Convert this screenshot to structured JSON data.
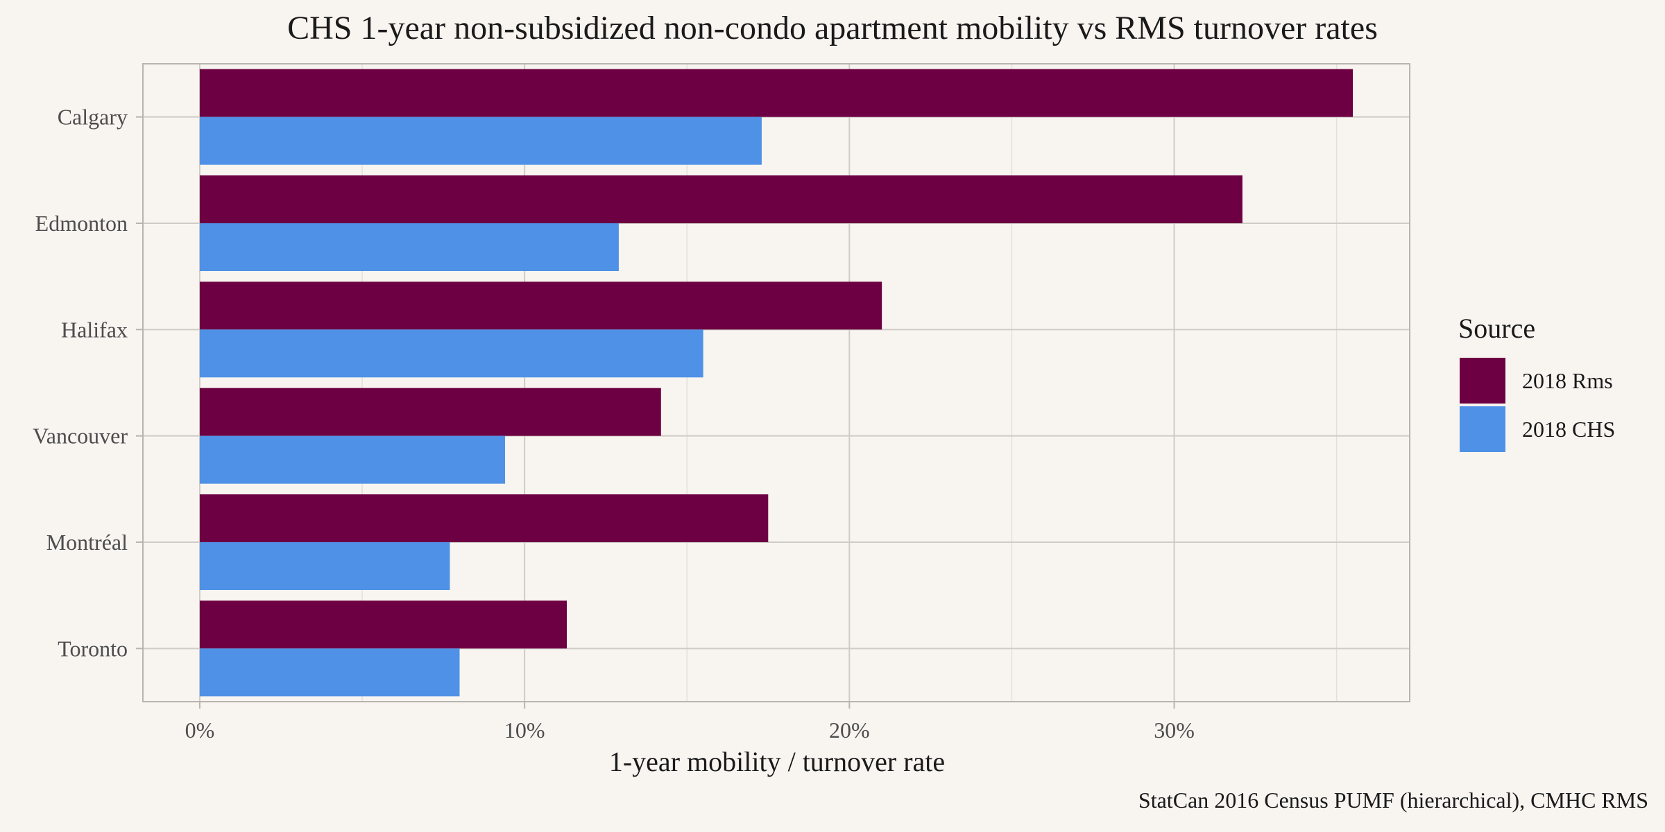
{
  "chart_data": {
    "type": "bar",
    "orientation": "horizontal",
    "title": "CHS 1-year non-subsidized non-condo apartment mobility vs RMS turnover rates",
    "xlabel": "1-year mobility / turnover rate",
    "ylabel": "",
    "caption": "StatCan 2016 Census PUMF (hierarchical), CMHC RMS",
    "categories": [
      "Calgary",
      "Edmonton",
      "Halifax",
      "Vancouver",
      "Montréal",
      "Toronto"
    ],
    "series": [
      {
        "name": "2018 Rms",
        "color": "#6d0042",
        "values": [
          35.5,
          32.1,
          21.0,
          14.2,
          17.5,
          11.3
        ]
      },
      {
        "name": "2018 CHS",
        "color": "#4f91e6",
        "values": [
          17.3,
          12.9,
          15.5,
          9.4,
          7.7,
          8.0
        ]
      }
    ],
    "xlim": [
      -1.75,
      37.25
    ],
    "x_ticks": [
      0,
      10,
      20,
      30
    ],
    "x_tick_labels": [
      "0%",
      "10%",
      "20%",
      "30%"
    ],
    "grid": true,
    "legend": {
      "title": "Source",
      "position": "right"
    }
  }
}
